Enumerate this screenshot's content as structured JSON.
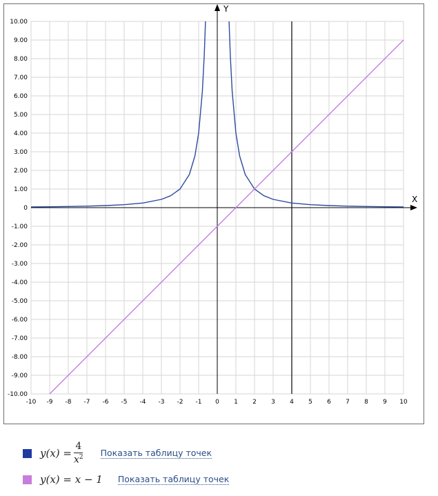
{
  "chart_data": {
    "type": "line",
    "xlabel": "X",
    "ylabel": "Y",
    "xlim": [
      -10,
      10
    ],
    "ylim": [
      -10,
      10
    ],
    "grid": true,
    "x_ticks": [
      "-10",
      "-9",
      "-8",
      "-7",
      "-6",
      "-5",
      "-4",
      "-3",
      "-2",
      "-1",
      "0",
      "1",
      "2",
      "3",
      "4",
      "5",
      "6",
      "7",
      "8",
      "9",
      "10"
    ],
    "y_ticks": [
      "10.00",
      "9.00",
      "8.00",
      "7.00",
      "6.00",
      "5.00",
      "4.00",
      "3.00",
      "2.00",
      "1.00",
      "0",
      "-1.00",
      "-2.00",
      "-3.00",
      "-4.00",
      "-5.00",
      "-6.00",
      "-7.00",
      "-8.00",
      "-9.00",
      "-10.00"
    ],
    "series": [
      {
        "formula": "y(x) = 4/x^2",
        "color": "#2d4a9e",
        "x": [
          -10,
          -9,
          -8,
          -7,
          -6,
          -5,
          -4,
          -3,
          -2.5,
          -2,
          -1.5,
          -1.2,
          -1,
          -0.8,
          -0.7,
          -0.632,
          0.632,
          0.7,
          0.8,
          1,
          1.2,
          1.5,
          2,
          2.5,
          3,
          4,
          5,
          6,
          7,
          8,
          9,
          10
        ],
        "y": [
          0.04,
          0.049,
          0.063,
          0.082,
          0.111,
          0.16,
          0.25,
          0.444,
          0.64,
          1.0,
          1.778,
          2.778,
          4.0,
          6.25,
          8.163,
          10.0,
          10.0,
          8.163,
          6.25,
          4.0,
          2.778,
          1.778,
          1.0,
          0.64,
          0.444,
          0.25,
          0.16,
          0.111,
          0.082,
          0.063,
          0.049,
          0.04
        ]
      },
      {
        "formula": "y(x) = x - 1",
        "color": "#c77ddb",
        "x": [
          -9,
          10
        ],
        "y": [
          -10,
          9
        ]
      }
    ],
    "vertical_line": {
      "x": 4,
      "color": "#000000"
    }
  },
  "legend": [
    {
      "color": "#1f3aa3",
      "lhs": "y(x) =",
      "numerator": "4",
      "denominator": "x",
      "exponent": "2",
      "link": "Показать таблицу точек"
    },
    {
      "color": "#c77ddb",
      "formula": "y(x) = x − 1",
      "link": "Показать таблицу точек"
    }
  ]
}
